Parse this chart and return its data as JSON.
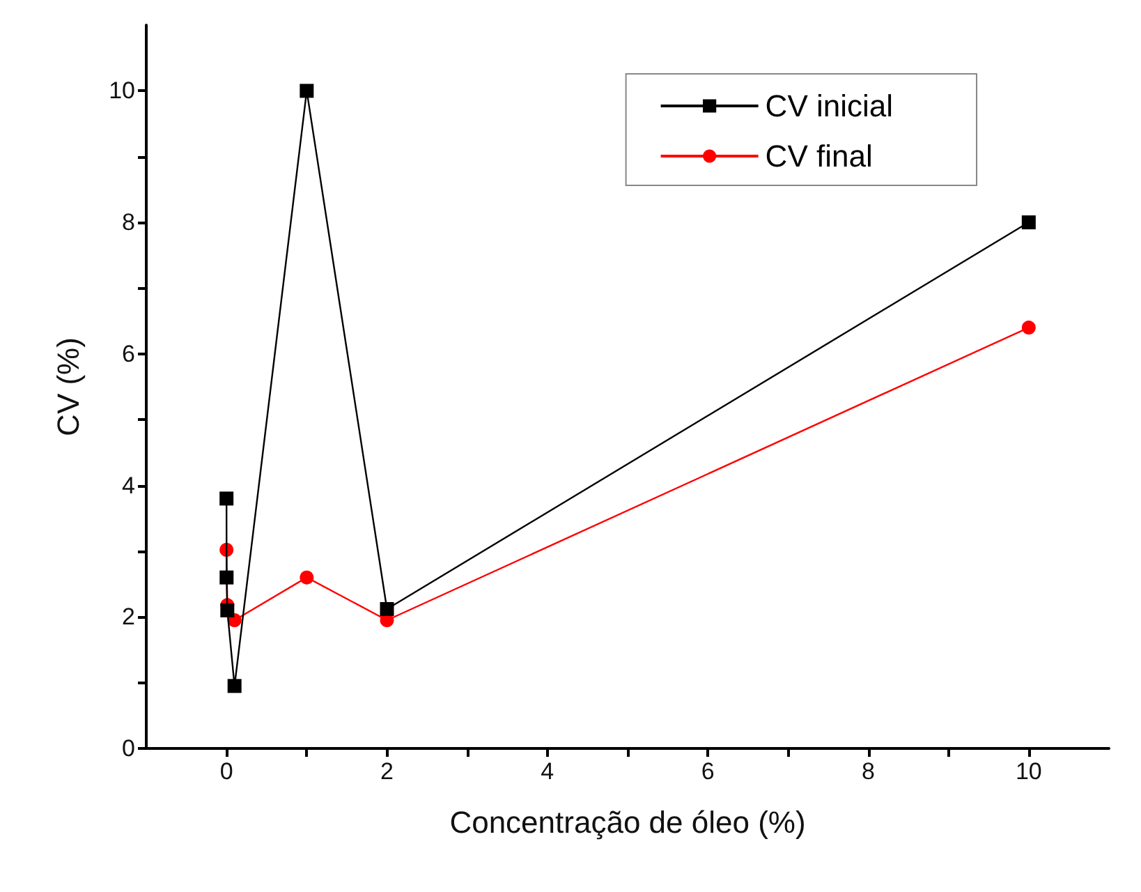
{
  "chart_data": {
    "type": "line",
    "xlabel": "Concentração de óleo (%)",
    "ylabel": "CV (%)",
    "xlim": [
      -1,
      11
    ],
    "xticks": [
      0,
      {
        "value": 1,
        "label": null
      },
      2,
      {
        "value": 3,
        "label": null
      },
      4,
      {
        "value": 5,
        "label": null
      },
      6,
      {
        "value": 7,
        "label": null
      },
      8,
      {
        "value": 9,
        "label": null
      },
      10
    ],
    "ylim": [
      0,
      11
    ],
    "yticks": [
      0,
      {
        "value": 1,
        "label": null
      },
      2,
      {
        "value": 3,
        "label": null
      },
      4,
      {
        "value": 5,
        "label": null
      },
      6,
      {
        "value": 7,
        "label": null
      },
      8,
      {
        "value": 9,
        "label": null
      },
      10
    ],
    "grid": false,
    "legend": "top right",
    "line_style": "solid",
    "series": [
      {
        "name": "CV inicial",
        "color": "#000000",
        "marker": "square",
        "x": [
          0,
          0.001,
          0.01,
          0.1,
          1,
          2,
          10
        ],
        "values": [
          3.8,
          2.6,
          2.1,
          0.95,
          10,
          2.12,
          8
        ]
      },
      {
        "name": "CV final",
        "color": "#ff0000",
        "marker": "circle",
        "x": [
          0,
          0.01,
          0.1,
          1,
          2,
          10
        ],
        "values": [
          3.02,
          2.18,
          1.95,
          2.6,
          1.95,
          6.4
        ]
      }
    ]
  }
}
